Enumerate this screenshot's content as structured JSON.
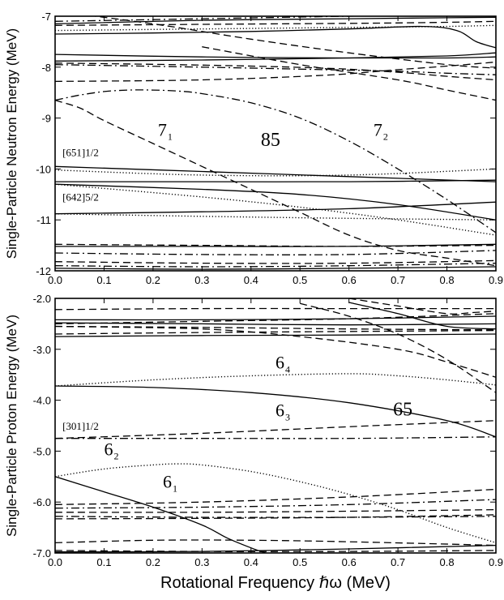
{
  "chart_data": [
    {
      "type": "line",
      "panel": "neutron",
      "ylabel": "Single-Particle Neutron Energy (MeV)",
      "xlim": [
        0.0,
        0.9
      ],
      "ylim": [
        -12,
        -7
      ],
      "x_ticks": [
        "0.0",
        "0.1",
        "0.2",
        "0.3",
        "0.4",
        "0.5",
        "0.6",
        "0.7",
        "0.8",
        "0.9"
      ],
      "y_ticks": [
        "-7",
        "-8",
        "-9",
        "-10",
        "-11",
        "-12"
      ],
      "annotations": [
        {
          "text": "7",
          "sub": "1",
          "x": 0.21,
          "y": -9.35,
          "size": "large"
        },
        {
          "text": "85",
          "x": 0.42,
          "y": -9.55,
          "size": "xlarge"
        },
        {
          "text": "7",
          "sub": "2",
          "x": 0.65,
          "y": -9.35,
          "size": "large"
        },
        {
          "text": "[651]1/2",
          "x": 0.015,
          "y": -9.75,
          "size": "small"
        },
        {
          "text": "[642]5/2",
          "x": 0.015,
          "y": -10.62,
          "size": "small"
        }
      ],
      "series": [
        {
          "style": "solid",
          "x": [
            0,
            0.3,
            0.6,
            0.8,
            0.9
          ],
          "y": [
            -7.15,
            -7.08,
            -7.05,
            -7.03,
            -7.02
          ]
        },
        {
          "style": "dashed",
          "x": [
            0,
            0.3,
            0.6,
            0.8,
            0.9
          ],
          "y": [
            -7.18,
            -7.16,
            -7.14,
            -7.12,
            -7.1
          ]
        },
        {
          "style": "dashdot",
          "x": [
            0,
            0.3,
            0.6,
            0.8,
            0.9
          ],
          "y": [
            -7.1,
            -7.05,
            -7.0,
            -6.98,
            -6.98
          ]
        },
        {
          "style": "solid",
          "x": [
            0,
            0.2,
            0.4,
            0.6,
            0.75,
            0.82,
            0.86,
            0.9
          ],
          "y": [
            -7.35,
            -7.33,
            -7.3,
            -7.25,
            -7.2,
            -7.28,
            -7.5,
            -7.62
          ]
        },
        {
          "style": "dashed",
          "x": [
            0,
            0.2,
            0.4,
            0.6,
            0.8,
            0.9
          ],
          "y": [
            -6.9,
            -7.15,
            -7.45,
            -7.72,
            -7.95,
            -8.02
          ]
        },
        {
          "style": "dotted",
          "x": [
            0,
            0.3,
            0.6,
            0.8,
            0.9
          ],
          "y": [
            -7.28,
            -7.25,
            -7.22,
            -7.2,
            -7.18
          ]
        },
        {
          "style": "solid",
          "x": [
            0,
            0.3,
            0.6,
            0.8,
            0.9
          ],
          "y": [
            -7.88,
            -7.86,
            -7.82,
            -7.78,
            -7.72
          ]
        },
        {
          "style": "solid",
          "x": [
            0,
            0.3,
            0.6,
            0.8,
            0.9
          ],
          "y": [
            -7.75,
            -7.8,
            -7.82,
            -7.82,
            -7.8
          ]
        },
        {
          "style": "dashed",
          "x": [
            0,
            0.3,
            0.55,
            0.7,
            0.8,
            0.9
          ],
          "y": [
            -8.28,
            -8.25,
            -8.16,
            -8.05,
            -7.98,
            -7.9
          ]
        },
        {
          "style": "dashed",
          "x": [
            0,
            0.3,
            0.55,
            0.7,
            0.8,
            0.9
          ],
          "y": [
            -7.92,
            -7.96,
            -8.02,
            -8.1,
            -8.18,
            -8.25
          ]
        },
        {
          "style": "dashdot",
          "x": [
            0,
            0.3,
            0.55,
            0.7,
            0.8,
            0.9
          ],
          "y": [
            -7.95,
            -8.0,
            -8.05,
            -8.08,
            -8.12,
            -8.15
          ]
        },
        {
          "style": "dashed",
          "x": [
            0.3,
            0.5,
            0.7,
            0.8,
            0.9
          ],
          "y": [
            -7.6,
            -7.95,
            -8.25,
            -8.45,
            -8.65
          ]
        },
        {
          "style": "dashdot",
          "x": [
            0,
            0.05,
            0.1,
            0.15,
            0.2,
            0.25,
            0.3,
            0.4,
            0.5,
            0.6,
            0.7,
            0.8,
            0.9
          ],
          "y": [
            -8.65,
            -8.55,
            -8.48,
            -8.45,
            -8.45,
            -8.47,
            -8.52,
            -8.7,
            -9.0,
            -9.45,
            -10.0,
            -10.6,
            -11.25
          ]
        },
        {
          "style": "dashed",
          "x": [
            0,
            0.05,
            0.1,
            0.2,
            0.3,
            0.4,
            0.5,
            0.6,
            0.7,
            0.8,
            0.9
          ],
          "y": [
            -8.65,
            -8.8,
            -9.05,
            -9.5,
            -9.95,
            -10.4,
            -10.85,
            -11.3,
            -11.6,
            -11.75,
            -11.9
          ]
        },
        {
          "style": "solid",
          "x": [
            0,
            0.3,
            0.6,
            0.9
          ],
          "y": [
            -9.95,
            -10.05,
            -10.15,
            -10.25
          ]
        },
        {
          "style": "dotted",
          "x": [
            0,
            0.3,
            0.6,
            0.9
          ],
          "y": [
            -10.02,
            -10.12,
            -10.12,
            -10.0
          ]
        },
        {
          "style": "solid",
          "x": [
            0,
            0.3,
            0.6,
            0.9
          ],
          "y": [
            -10.25,
            -10.25,
            -10.25,
            -10.22
          ]
        },
        {
          "style": "solid",
          "x": [
            0,
            0.3,
            0.5,
            0.7,
            0.9
          ],
          "y": [
            -10.3,
            -10.4,
            -10.5,
            -10.7,
            -11.0
          ]
        },
        {
          "style": "dotted",
          "x": [
            0,
            0.3,
            0.5,
            0.7,
            0.9
          ],
          "y": [
            -10.3,
            -10.55,
            -10.75,
            -11.0,
            -11.3
          ]
        },
        {
          "style": "solid",
          "x": [
            0,
            0.3,
            0.6,
            0.9
          ],
          "y": [
            -10.88,
            -10.84,
            -10.78,
            -10.65
          ]
        },
        {
          "style": "dotted",
          "x": [
            0,
            0.3,
            0.6,
            0.9
          ],
          "y": [
            -10.88,
            -10.93,
            -10.97,
            -11.0
          ]
        },
        {
          "style": "dashed",
          "x": [
            0,
            0.3,
            0.6,
            0.9
          ],
          "y": [
            -11.48,
            -11.5,
            -11.52,
            -11.5
          ]
        },
        {
          "style": "solid",
          "x": [
            0,
            0.3,
            0.6,
            0.9
          ],
          "y": [
            -11.52,
            -11.52,
            -11.52,
            -11.48
          ]
        },
        {
          "style": "dashdot",
          "x": [
            0,
            0.3,
            0.6,
            0.9
          ],
          "y": [
            -11.65,
            -11.68,
            -11.68,
            -11.6
          ]
        },
        {
          "style": "dashed",
          "x": [
            0,
            0.3,
            0.6,
            0.9
          ],
          "y": [
            -11.82,
            -11.85,
            -11.85,
            -11.8
          ]
        },
        {
          "style": "dashdot",
          "x": [
            0,
            0.3,
            0.6,
            0.9
          ],
          "y": [
            -11.9,
            -11.92,
            -11.9,
            -11.85
          ]
        },
        {
          "style": "solid",
          "x": [
            0,
            0.3,
            0.6,
            0.9
          ],
          "y": [
            -11.95,
            -11.97,
            -11.95,
            -11.92
          ]
        }
      ]
    },
    {
      "type": "line",
      "panel": "proton",
      "ylabel": "Single-Particle Proton Energy (MeV)",
      "xlabel": "Rotational Frequency ℏω (MeV)",
      "xlim": [
        0.0,
        0.9
      ],
      "ylim": [
        -7.0,
        -2.0
      ],
      "x_ticks": [
        "0.0",
        "0.1",
        "0.2",
        "0.3",
        "0.4",
        "0.5",
        "0.6",
        "0.7",
        "0.8",
        "0.9"
      ],
      "y_ticks": [
        "-2.0",
        "-3.0",
        "-4.0",
        "-5.0",
        "-6.0",
        "-7.0"
      ],
      "annotations": [
        {
          "text": "6",
          "sub": "4",
          "x": 0.45,
          "y": -3.38,
          "size": "large"
        },
        {
          "text": "6",
          "sub": "3",
          "x": 0.45,
          "y": -4.32,
          "size": "large"
        },
        {
          "text": "65",
          "x": 0.69,
          "y": -4.3,
          "size": "xlarge"
        },
        {
          "text": "[301]1/2",
          "x": 0.015,
          "y": -4.58,
          "size": "small"
        },
        {
          "text": "6",
          "sub": "2",
          "x": 0.1,
          "y": -5.08,
          "size": "large"
        },
        {
          "text": "6",
          "sub": "1",
          "x": 0.22,
          "y": -5.72,
          "size": "large"
        }
      ],
      "series": [
        {
          "style": "dashed",
          "x": [
            0,
            0.3,
            0.6,
            0.9
          ],
          "y": [
            -2.22,
            -2.2,
            -2.2,
            -2.2
          ]
        },
        {
          "style": "dashed",
          "x": [
            0,
            0.3,
            0.6,
            0.9
          ],
          "y": [
            -2.5,
            -2.45,
            -2.4,
            -2.3
          ]
        },
        {
          "style": "solid",
          "x": [
            0,
            0.3,
            0.6,
            0.9
          ],
          "y": [
            -2.42,
            -2.42,
            -2.4,
            -2.35
          ]
        },
        {
          "style": "solid",
          "x": [
            0,
            0.3,
            0.6,
            0.9
          ],
          "y": [
            -2.48,
            -2.5,
            -2.52,
            -2.5
          ]
        },
        {
          "style": "dashed",
          "x": [
            0,
            0.3,
            0.6,
            0.9
          ],
          "y": [
            -2.55,
            -2.57,
            -2.6,
            -2.62
          ]
        },
        {
          "style": "dashed",
          "x": [
            0,
            0.3,
            0.6,
            0.9
          ],
          "y": [
            -2.7,
            -2.67,
            -2.65,
            -2.63
          ]
        },
        {
          "style": "solid",
          "x": [
            0,
            0.3,
            0.6,
            0.9
          ],
          "y": [
            -2.75,
            -2.73,
            -2.72,
            -2.7
          ]
        },
        {
          "style": "dashed",
          "x": [
            0.6,
            0.7,
            0.8,
            0.85,
            0.9
          ],
          "y": [
            -2.0,
            -2.15,
            -2.3,
            -2.28,
            -2.25
          ]
        },
        {
          "style": "solid",
          "x": [
            0.6,
            0.7,
            0.8,
            0.9
          ],
          "y": [
            -2.08,
            -2.3,
            -2.55,
            -2.6
          ]
        },
        {
          "style": "dashed",
          "x": [
            0.5,
            0.6,
            0.7,
            0.8,
            0.9
          ],
          "y": [
            -2.1,
            -2.35,
            -2.7,
            -3.2,
            -3.85
          ]
        },
        {
          "style": "dashed",
          "x": [
            0,
            0.3,
            0.5,
            0.7,
            0.8,
            0.9
          ],
          "y": [
            -2.55,
            -2.6,
            -2.75,
            -3.0,
            -3.25,
            -3.55
          ]
        },
        {
          "style": "dotted",
          "x": [
            0,
            0.2,
            0.4,
            0.6,
            0.7,
            0.8,
            0.9
          ],
          "y": [
            -3.72,
            -3.6,
            -3.52,
            -3.48,
            -3.52,
            -3.6,
            -3.7
          ]
        },
        {
          "style": "solid",
          "x": [
            0,
            0.2,
            0.4,
            0.6,
            0.8,
            0.9
          ],
          "y": [
            -3.72,
            -3.75,
            -3.85,
            -4.05,
            -4.4,
            -4.72
          ]
        },
        {
          "style": "dashed",
          "x": [
            0,
            0.3,
            0.6,
            0.9
          ],
          "y": [
            -4.75,
            -4.65,
            -4.52,
            -4.4
          ]
        },
        {
          "style": "dashdot",
          "x": [
            0,
            0.3,
            0.6,
            0.9
          ],
          "y": [
            -4.75,
            -4.75,
            -4.75,
            -4.72
          ]
        },
        {
          "style": "dotted",
          "x": [
            0,
            0.1,
            0.2,
            0.25,
            0.3,
            0.4,
            0.5,
            0.6,
            0.7,
            0.8,
            0.9
          ],
          "y": [
            -5.5,
            -5.35,
            -5.27,
            -5.25,
            -5.27,
            -5.4,
            -5.6,
            -5.85,
            -6.15,
            -6.5,
            -6.8
          ]
        },
        {
          "style": "solid",
          "x": [
            0,
            0.1,
            0.2,
            0.3,
            0.35,
            0.4,
            0.43
          ],
          "y": [
            -5.5,
            -5.8,
            -6.1,
            -6.45,
            -6.7,
            -6.9,
            -7.0
          ]
        },
        {
          "style": "dashed",
          "x": [
            0,
            0.3,
            0.6,
            0.9
          ],
          "y": [
            -6.05,
            -6.0,
            -5.9,
            -5.75
          ]
        },
        {
          "style": "dashdot",
          "x": [
            0,
            0.3,
            0.6,
            0.9
          ],
          "y": [
            -6.12,
            -6.1,
            -6.05,
            -5.95
          ]
        },
        {
          "style": "dashed",
          "x": [
            0,
            0.3,
            0.6,
            0.9
          ],
          "y": [
            -6.2,
            -6.2,
            -6.18,
            -6.15
          ]
        },
        {
          "style": "dashed",
          "x": [
            0,
            0.3,
            0.6,
            0.9
          ],
          "y": [
            -6.33,
            -6.32,
            -6.3,
            -6.25
          ]
        },
        {
          "style": "dashdot",
          "x": [
            0,
            0.3,
            0.6,
            0.9
          ],
          "y": [
            -6.28,
            -6.3,
            -6.3,
            -6.28
          ]
        },
        {
          "style": "dashed",
          "x": [
            0,
            0.2,
            0.4,
            0.6,
            0.9
          ],
          "y": [
            -6.8,
            -6.75,
            -6.75,
            -6.78,
            -6.85
          ]
        },
        {
          "style": "dashed",
          "x": [
            0,
            0.3,
            0.6,
            0.9
          ],
          "y": [
            -6.95,
            -6.97,
            -6.97,
            -6.95
          ]
        },
        {
          "style": "solid",
          "x": [
            0,
            0.3,
            0.6,
            0.9
          ],
          "y": [
            -6.98,
            -6.97,
            -6.92,
            -6.85
          ]
        }
      ]
    }
  ]
}
